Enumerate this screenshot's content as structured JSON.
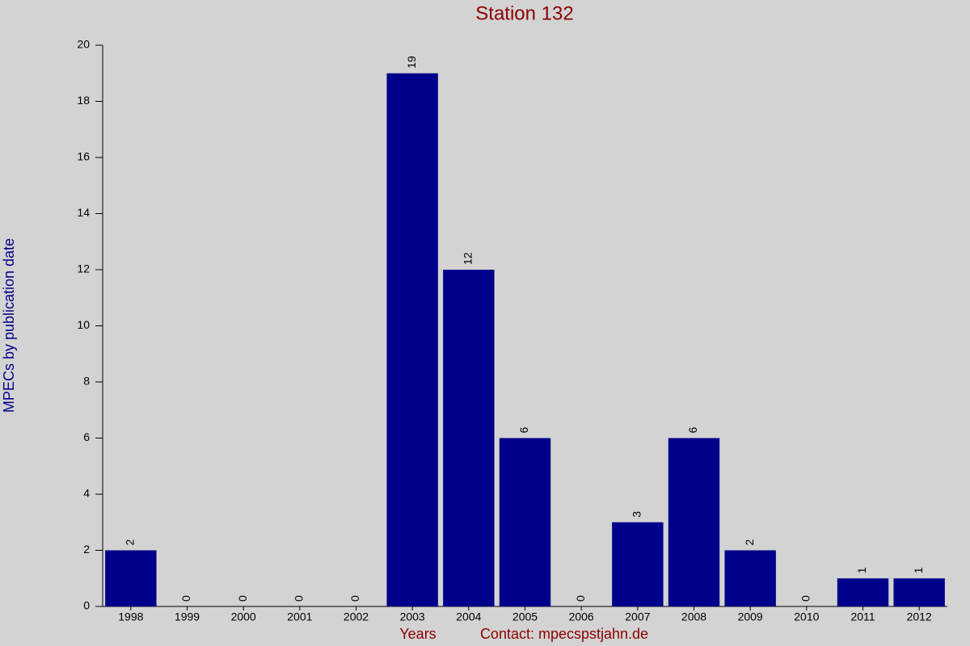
{
  "chart_data": {
    "type": "bar",
    "title": "Station 132",
    "x_label": "Years",
    "y_label": "MPECs by publication date",
    "footer": "Contact: mpecspstjahn.de",
    "categories": [
      "1998",
      "1999",
      "2000",
      "2001",
      "2002",
      "2003",
      "2004",
      "2005",
      "2006",
      "2007",
      "2008",
      "2009",
      "2010",
      "2011",
      "2012"
    ],
    "values": [
      2,
      0,
      0,
      0,
      0,
      19,
      12,
      6,
      0,
      3,
      6,
      2,
      0,
      1,
      1
    ],
    "color": "#00008b",
    "ylim": [
      0,
      20
    ],
    "yticks": [
      0,
      2,
      4,
      6,
      8,
      10,
      12,
      14,
      16,
      18,
      20
    ],
    "grid": false
  }
}
